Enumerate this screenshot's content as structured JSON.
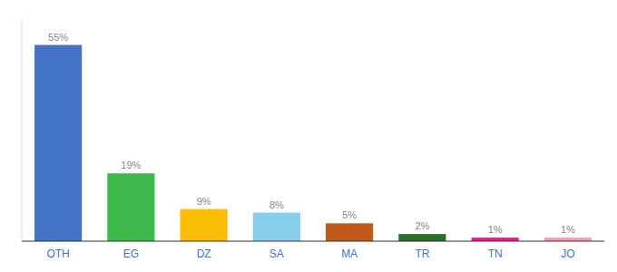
{
  "chart_data": {
    "type": "bar",
    "categories": [
      "OTH",
      "EG",
      "DZ",
      "SA",
      "MA",
      "TR",
      "TN",
      "JO"
    ],
    "values": [
      55,
      19,
      9,
      8,
      5,
      2,
      1,
      1
    ],
    "value_labels": [
      "55%",
      "19%",
      "9%",
      "8%",
      "5%",
      "2%",
      "1%",
      "1%"
    ],
    "colors": [
      "#4472C4",
      "#3CB84A",
      "#FBBC04",
      "#87CEEB",
      "#C05A1A",
      "#2A6E2A",
      "#E91E8C",
      "#F4A0B0"
    ],
    "ylim": [
      0,
      62
    ],
    "data_labels": true,
    "tick_labels": "x"
  }
}
